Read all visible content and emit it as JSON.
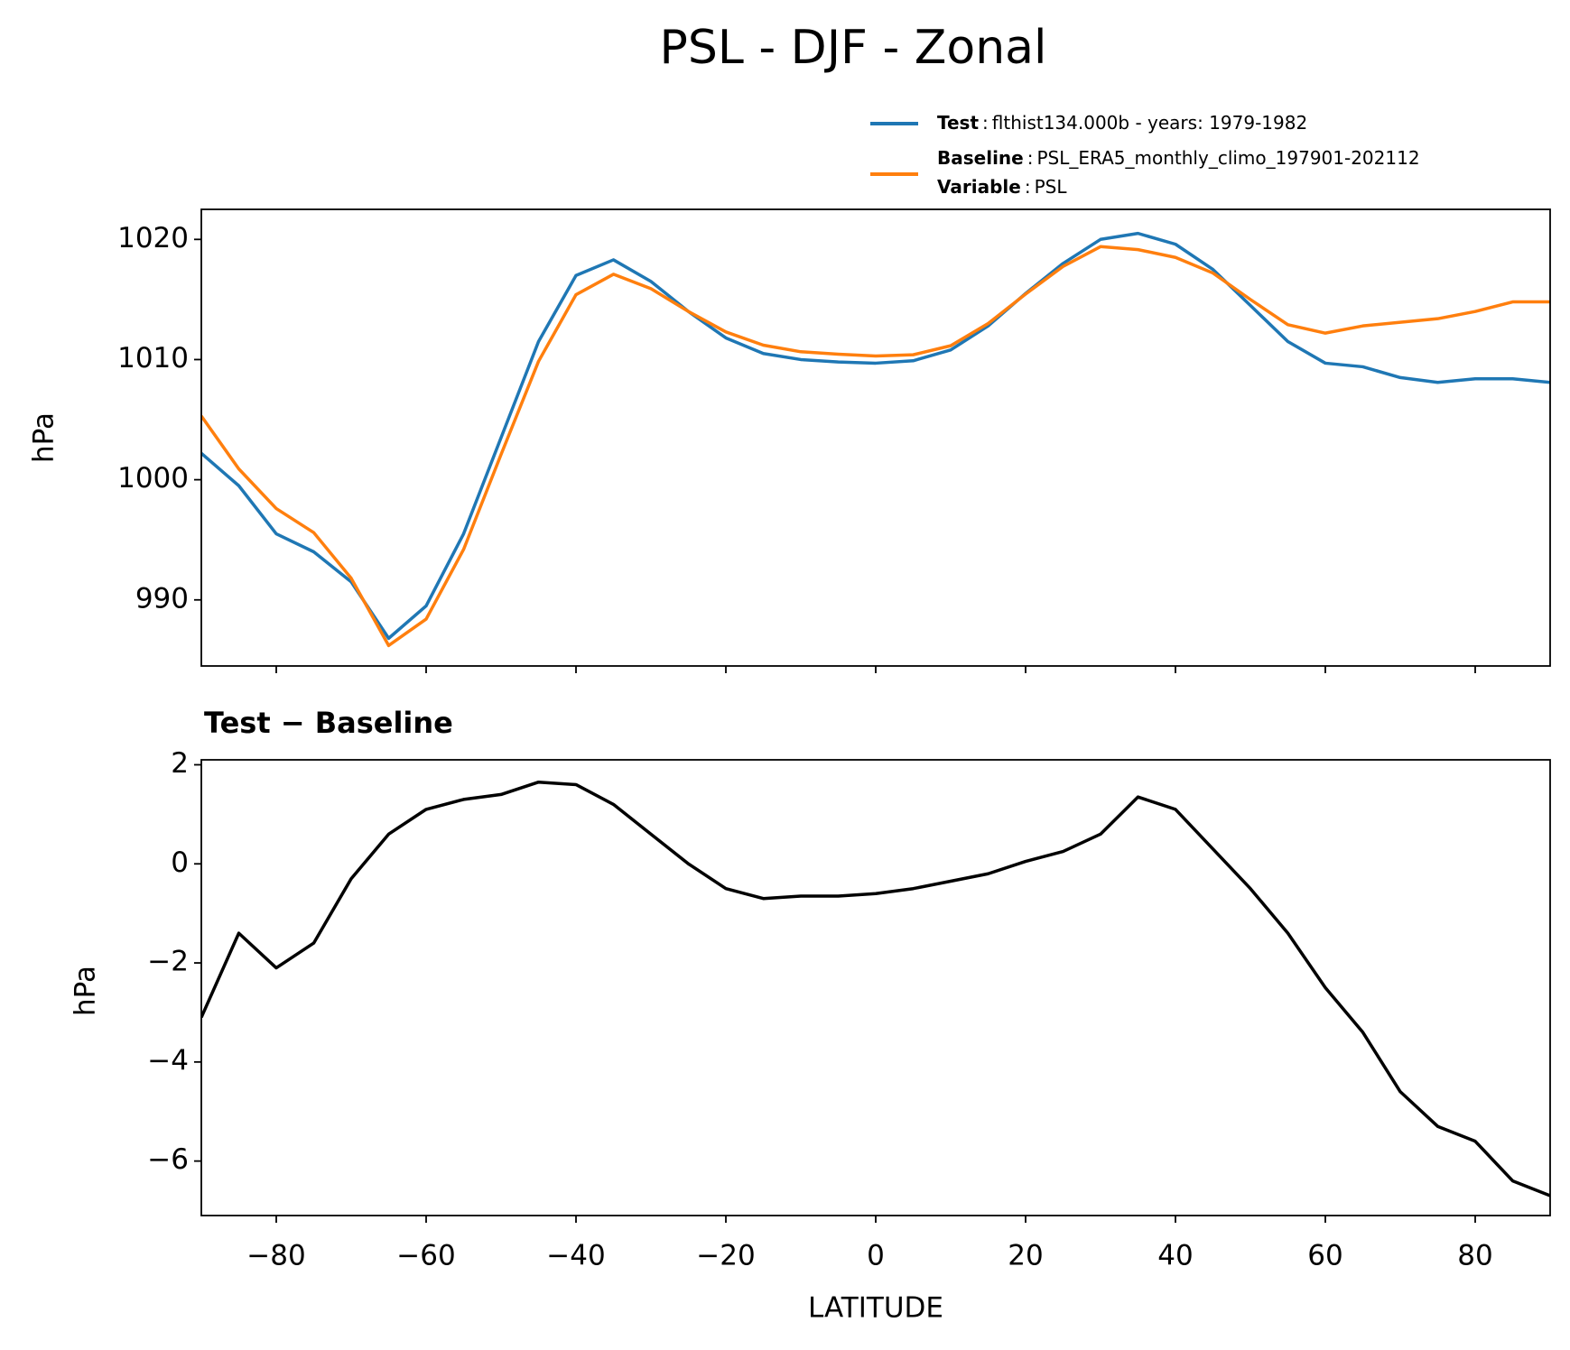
{
  "chart_data": [
    {
      "type": "line",
      "title": "PSL - DJF - Zonal",
      "ylabel": "hPa",
      "legend_separator": ":",
      "legend_note": {
        "name": "Variable",
        "text": "PSL"
      },
      "x": [
        -90,
        -85,
        -80,
        -75,
        -70,
        -65,
        -60,
        -55,
        -50,
        -45,
        -40,
        -35,
        -30,
        -25,
        -20,
        -15,
        -10,
        -5,
        0,
        5,
        10,
        15,
        20,
        25,
        30,
        35,
        40,
        45,
        50,
        55,
        60,
        65,
        70,
        75,
        80,
        85,
        90
      ],
      "series": [
        {
          "name": "Test",
          "description": "flthist134.000b - years: 1979-1982",
          "color": "#1f77b4",
          "values": [
            1002.2,
            999.5,
            995.5,
            994.0,
            991.5,
            986.8,
            989.5,
            995.5,
            1003.5,
            1011.5,
            1017.0,
            1018.3,
            1016.5,
            1014.0,
            1011.8,
            1010.5,
            1010.0,
            1009.8,
            1009.7,
            1009.9,
            1010.8,
            1012.8,
            1015.5,
            1018.0,
            1020.0,
            1020.5,
            1019.6,
            1017.5,
            1014.5,
            1011.5,
            1009.7,
            1009.4,
            1008.5,
            1008.1,
            1008.4,
            1008.4,
            1008.1
          ]
        },
        {
          "name": "Baseline",
          "description": "PSL_ERA5_monthly_climo_197901-202112",
          "color": "#ff7f0e",
          "values": [
            1005.3,
            1000.9,
            997.6,
            995.6,
            991.8,
            986.2,
            988.4,
            994.2,
            1002.1,
            1009.85,
            1015.4,
            1017.1,
            1015.9,
            1014.0,
            1012.3,
            1011.2,
            1010.65,
            1010.45,
            1010.3,
            1010.4,
            1011.15,
            1013.0,
            1015.45,
            1017.75,
            1019.4,
            1019.15,
            1018.5,
            1017.2,
            1015.0,
            1012.9,
            1012.2,
            1012.8,
            1013.1,
            1013.4,
            1014.0,
            1014.8,
            1014.8
          ]
        }
      ],
      "xlim": [
        -90,
        90
      ],
      "xticks": [
        -80,
        -60,
        -40,
        -20,
        0,
        20,
        40,
        60,
        80
      ],
      "ylim": [
        984.5,
        1022.5
      ],
      "yticks": [
        990,
        1000,
        1010,
        1020
      ]
    },
    {
      "type": "line",
      "title": "Test − Baseline",
      "ylabel": "hPa",
      "xlabel": "LATITUDE",
      "x": [
        -90,
        -85,
        -80,
        -75,
        -70,
        -65,
        -60,
        -55,
        -50,
        -45,
        -40,
        -35,
        -30,
        -25,
        -20,
        -15,
        -10,
        -5,
        0,
        5,
        10,
        15,
        20,
        25,
        30,
        35,
        40,
        45,
        50,
        55,
        60,
        65,
        70,
        75,
        80,
        85,
        90
      ],
      "series": [
        {
          "color": "#000000",
          "values": [
            -3.1,
            -1.4,
            -2.1,
            -1.6,
            -0.3,
            0.6,
            1.1,
            1.3,
            1.4,
            1.65,
            1.6,
            1.2,
            0.6,
            0.0,
            -0.5,
            -0.7,
            -0.65,
            -0.65,
            -0.6,
            -0.5,
            -0.35,
            -0.2,
            0.05,
            0.25,
            0.6,
            1.35,
            1.1,
            0.3,
            -0.5,
            -1.4,
            -2.5,
            -3.4,
            -4.6,
            -5.3,
            -5.6,
            -6.4,
            -6.7
          ]
        }
      ],
      "xlim": [
        -90,
        90
      ],
      "xticks": [
        {
          "value": -80,
          "label": "−80"
        },
        {
          "value": -60,
          "label": "−60"
        },
        {
          "value": -40,
          "label": "−40"
        },
        {
          "value": -20,
          "label": "−20"
        },
        0,
        20,
        40,
        60,
        80
      ],
      "ylim": [
        -7.1,
        2.1
      ],
      "yticks": [
        {
          "value": -6,
          "label": "−6"
        },
        {
          "value": -4,
          "label": "−4"
        },
        {
          "value": -2,
          "label": "−2"
        },
        0,
        2
      ]
    }
  ]
}
